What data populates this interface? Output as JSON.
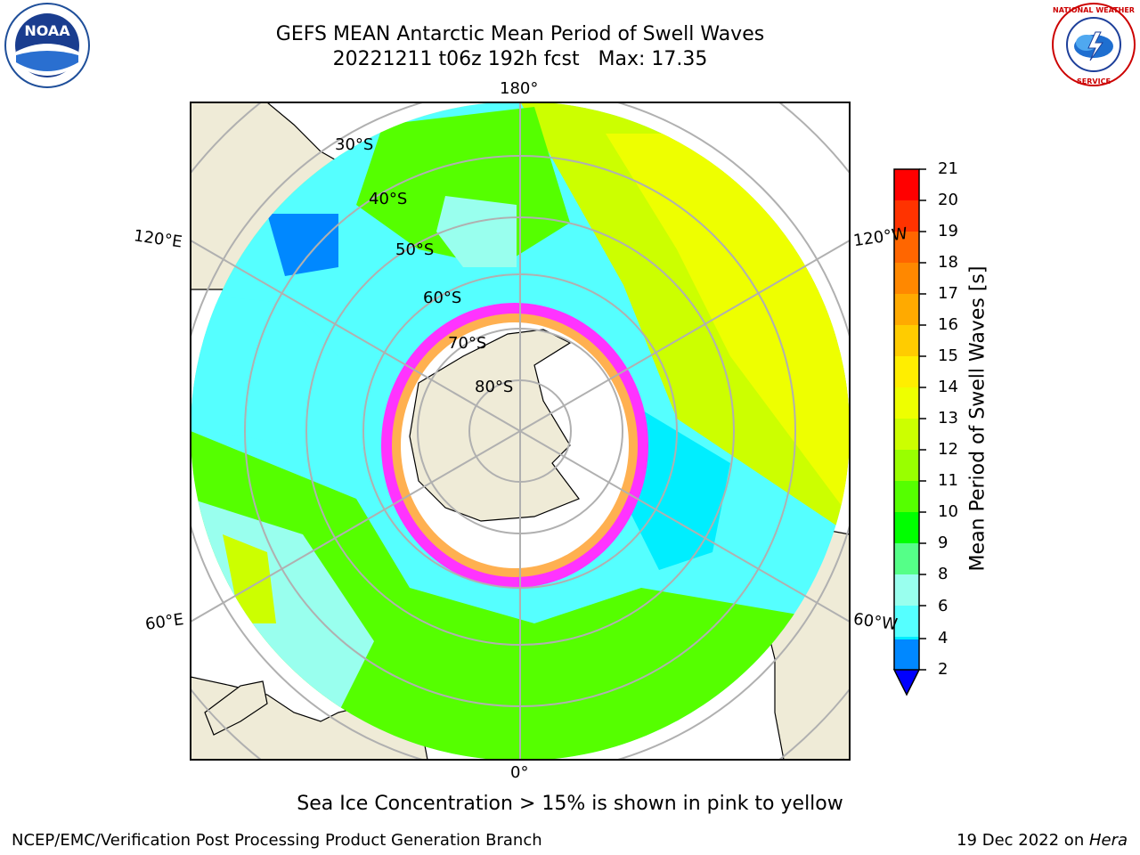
{
  "title": {
    "line1": "GEFS MEAN Antarctic Mean Period of Swell Waves",
    "line2": "20221211 t06z 192h fcst   Max: 17.35"
  },
  "map": {
    "projection": "south-polar-stereographic",
    "longitude_labels": {
      "top": "180°",
      "bottom": "0°",
      "left_upper": "120°E",
      "left_lower": "60°E",
      "right_upper": "120°W",
      "right_lower": "60°W"
    },
    "latitude_labels": [
      "30°S",
      "40°S",
      "50°S",
      "60°S",
      "70°S",
      "80°S"
    ],
    "land_color": "#efebd7",
    "ice_zone_colors": [
      "#ff33ff",
      "#ffb050",
      "#ffffff"
    ]
  },
  "colorbar": {
    "label": "Mean Period of Swell Waves [s]",
    "ticks": [
      "21",
      "20",
      "19",
      "18",
      "17",
      "16",
      "15",
      "14",
      "13",
      "12",
      "11",
      "10",
      "9",
      "8",
      "6",
      "4",
      "2"
    ],
    "colors": [
      "#ff0000",
      "#ff3300",
      "#ff6600",
      "#ff8800",
      "#ffaa00",
      "#ffcc00",
      "#ffee00",
      "#eeff00",
      "#ccff00",
      "#99ff00",
      "#55ff00",
      "#00ff00",
      "#55ff88",
      "#99ffee",
      "#55ffff",
      "#00eeff",
      "#0088ff",
      "#0000ff"
    ]
  },
  "note": "Sea Ice Concentration > 15% is shown in pink to yellow",
  "footer": {
    "left": "NCEP/EMC/Verification Post Processing Product Generation Branch",
    "right_prefix": "19 Dec 2022 on ",
    "right_host": "Hera"
  },
  "logos": {
    "noaa": "NOAA",
    "nws": "NATIONAL WEATHER SERVICE"
  }
}
